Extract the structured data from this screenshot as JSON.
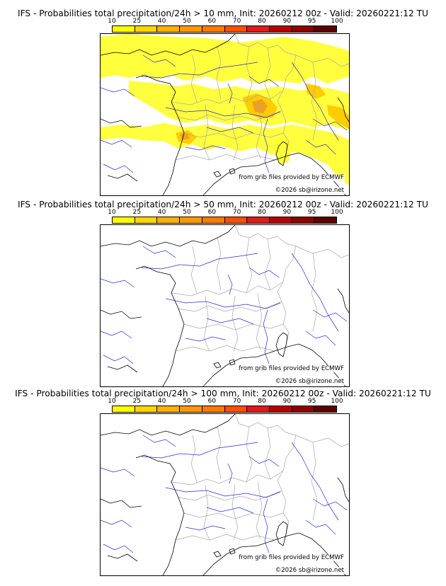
{
  "scale": {
    "ticks": [
      "10",
      "25",
      "40",
      "50",
      "60",
      "70",
      "80",
      "90",
      "95",
      "100"
    ],
    "colors": [
      "#ffff00",
      "#ffd600",
      "#ffb000",
      "#ff9900",
      "#ff7a00",
      "#ff4f00",
      "#e01a1a",
      "#b80000",
      "#8f0000",
      "#5c0000"
    ]
  },
  "panels": [
    {
      "title": "IFS - Probabilities total precipitation/24h > 10 mm, Init: 20260212 00z - Valid: 20260221:12 TU",
      "credit_source": "from grib files provided by ECMWF",
      "credit_copyright": "©2026 sb@irizone.net",
      "has_precip": true
    },
    {
      "title": "IFS - Probabilities total precipitation/24h > 50 mm, Init: 20260212 00z - Valid: 20260221:12 TU",
      "credit_source": "from grib files provided by ECMWF",
      "credit_copyright": "©2026 sb@irizone.net",
      "has_precip": false
    },
    {
      "title": "IFS - Probabilities total precipitation/24h > 100 mm, Init: 20260212 00z - Valid: 20260221:12 TU",
      "credit_source": "from grib files provided by ECMWF",
      "credit_copyright": "©2026 sb@irizone.net",
      "has_precip": false
    }
  ],
  "map": {
    "coast_color": "#000000",
    "river_color": "#2a2ad6",
    "border_color": "#a8a8a8",
    "precip_low_color": "#ffff33",
    "precip_mid_color": "#ffcc00",
    "precip_high_color": "#f0a020"
  }
}
